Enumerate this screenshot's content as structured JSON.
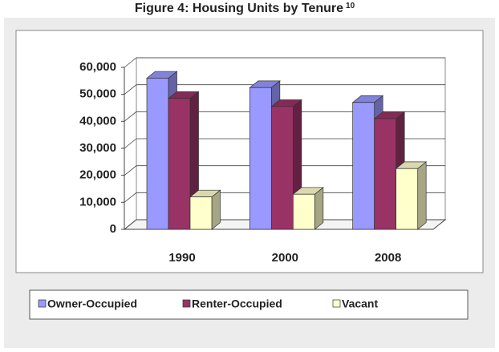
{
  "chart_data": {
    "type": "bar3d",
    "title": "Figure 4: Housing Units by Tenure",
    "title_note": "10",
    "categories": [
      "1990",
      "2000",
      "2008"
    ],
    "series": [
      {
        "name": "Owner-Occupied",
        "color": "#9999ff",
        "values": [
          56000,
          52500,
          47000
        ]
      },
      {
        "name": "Renter-Occupied",
        "color": "#993366",
        "values": [
          48500,
          45500,
          41000
        ]
      },
      {
        "name": "Vacant",
        "color": "#ffffcc",
        "values": [
          12000,
          13000,
          22500
        ]
      }
    ],
    "ylim": [
      0,
      60000
    ],
    "yticks": [
      0,
      {
        "value": 10000,
        "label": "10,000"
      },
      {
        "value": 20000,
        "label": "20,000"
      },
      {
        "value": 30000,
        "label": "30,000"
      },
      {
        "value": 40000,
        "label": "40,000"
      },
      {
        "value": 50000,
        "label": "50,000"
      },
      {
        "value": 60000,
        "label": "60,000"
      }
    ],
    "grid": true,
    "legend": "bottom"
  }
}
